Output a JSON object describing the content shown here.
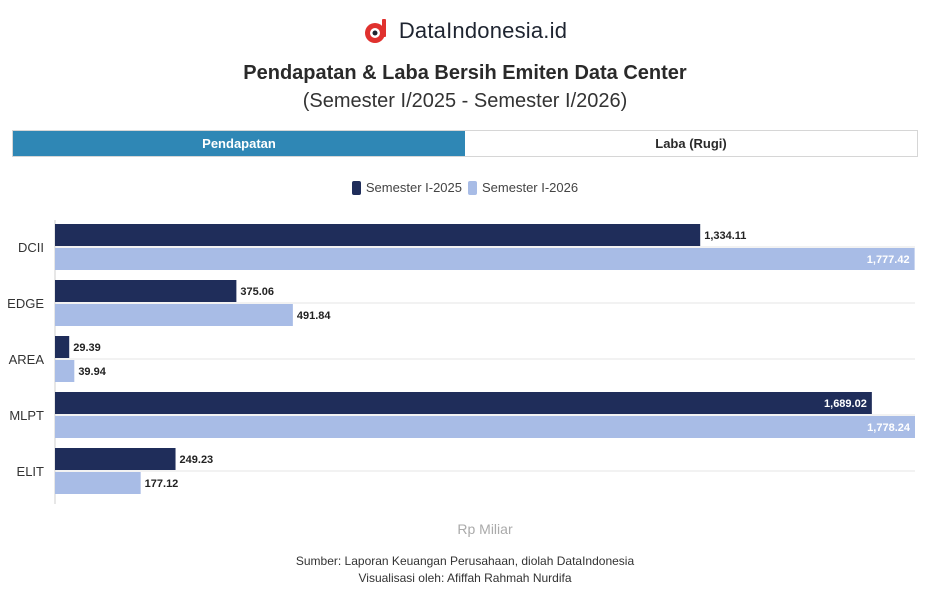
{
  "brand": {
    "name": "DataIndonesia.id"
  },
  "header": {
    "title": "Pendapatan & Laba Bersih Emiten Data Center",
    "subtitle": "(Semester I/2025 - Semester I/2026)"
  },
  "tabs": [
    {
      "label": "Pendapatan",
      "active": true
    },
    {
      "label": "Laba (Rugi)",
      "active": false
    }
  ],
  "chart_data": {
    "type": "bar",
    "orientation": "horizontal",
    "categories": [
      "DCII",
      "EDGE",
      "AREA",
      "MLPT",
      "ELIT"
    ],
    "series": [
      {
        "name": "Semester I-2025",
        "color": "#1f2d5a",
        "values": [
          1334.11,
          375.06,
          29.39,
          1689.02,
          249.23
        ]
      },
      {
        "name": "Semester I-2026",
        "color": "#a8bce6",
        "values": [
          1777.42,
          491.84,
          39.94,
          1778.24,
          177.12
        ]
      }
    ],
    "data_labels": [
      [
        "1,334.11",
        "375.06",
        "29.39",
        "1,689.02",
        "249.23"
      ],
      [
        "1,777.42",
        "491.84",
        "39.94",
        "1,778.24",
        "177.12"
      ]
    ],
    "xlabel": "Rp Miliar",
    "xlim": [
      0,
      1778.24
    ],
    "legend_position": "top"
  },
  "footer": {
    "source": "Sumber: Laporan Keuangan Perusahaan, diolah DataIndonesia",
    "credit": "Visualisasi oleh: Afiffah Rahmah Nurdifa"
  }
}
